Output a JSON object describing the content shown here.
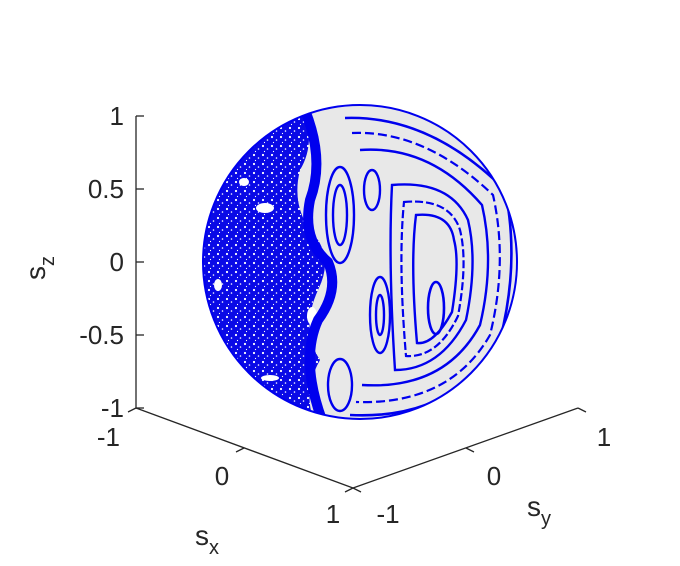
{
  "chart_data": {
    "type": "scatter",
    "title": "",
    "projection": "3d",
    "surface": "unit-sphere",
    "xlabel": "s",
    "xlabel_sub": "x",
    "ylabel": "s",
    "ylabel_sub": "y",
    "zlabel": "s",
    "zlabel_sub": "z",
    "xlim": [
      -1,
      1
    ],
    "ylim": [
      -1,
      1
    ],
    "zlim": [
      -1,
      1
    ],
    "x_ticks": [
      "-1",
      "0",
      "1"
    ],
    "y_ticks": [
      "-1",
      "0",
      "1"
    ],
    "z_ticks": [
      "-1",
      "-0.5",
      "0",
      "0.5",
      "1"
    ],
    "z_tick_values": [
      -1,
      -0.5,
      0,
      0.5,
      1
    ],
    "grid": false,
    "marker_color": "#0000ee",
    "sphere_fill": "#e8e8e8"
  }
}
